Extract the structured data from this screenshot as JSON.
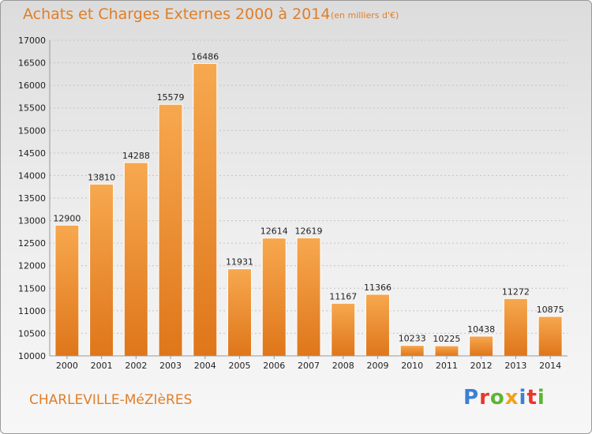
{
  "title": "Achats et Charges Externes 2000 à 2014",
  "subtitle": "(en milliers d'€)",
  "footer": "CHARLEVILLE-MéZIèRES",
  "logo": {
    "text": "Proxiti",
    "colors": [
      "#3b7fd6",
      "#e8382b",
      "#5cb531",
      "#f0a21e",
      "#3b7fd6",
      "#e8382b",
      "#5cb531"
    ]
  },
  "colors": {
    "bar_light": "#f7a84f",
    "bar_dark": "#e37b1e",
    "accent": "#e07e27"
  },
  "chart_data": {
    "type": "bar",
    "categories": [
      "2000",
      "2001",
      "2002",
      "2003",
      "2004",
      "2005",
      "2006",
      "2007",
      "2008",
      "2009",
      "2010",
      "2011",
      "2012",
      "2013",
      "2014"
    ],
    "values": [
      12900,
      13810,
      14288,
      15579,
      16486,
      11931,
      12614,
      12619,
      11167,
      11366,
      10233,
      10225,
      10438,
      11272,
      10875
    ],
    "ylim": [
      10000,
      17000
    ],
    "yticks": [
      10000,
      10500,
      11000,
      11500,
      12000,
      12500,
      13000,
      13500,
      14000,
      14500,
      15000,
      15500,
      16000,
      16500,
      17000
    ],
    "grid": "horizontal-dashed"
  }
}
